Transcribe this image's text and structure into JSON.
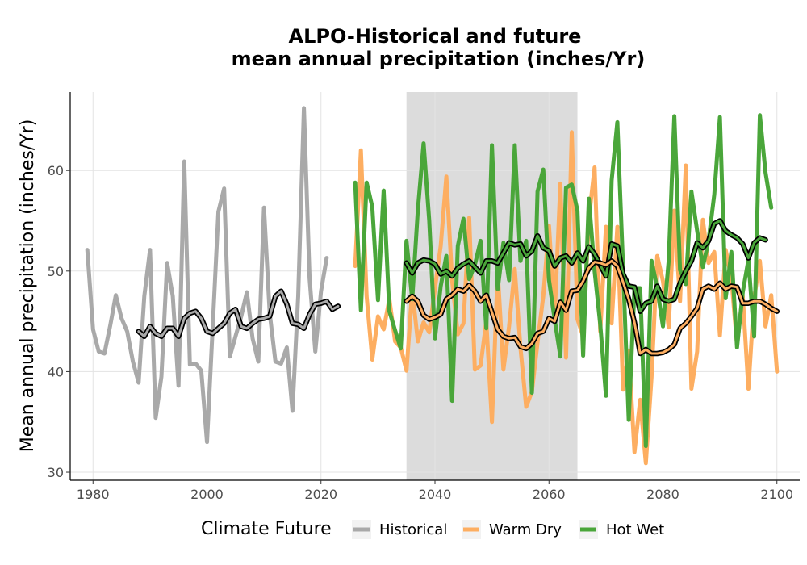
{
  "chart_data": {
    "type": "line",
    "title_line1": "ALPO-Historical and future",
    "title_line2": "mean annual precipitation (inches/Yr)",
    "xlabel": "",
    "ylabel": "Mean annual precipitation (inches/Yr)",
    "xlim": [
      1976,
      2104
    ],
    "ylim": [
      29.2,
      67.8
    ],
    "x_ticks": [
      1980,
      2000,
      2020,
      2040,
      2060,
      2080,
      2100
    ],
    "y_ticks": [
      30,
      40,
      50,
      60
    ],
    "grid": true,
    "shaded_period": [
      2035,
      2065
    ],
    "shaded_color": "#dcdcdc",
    "legend": {
      "title": "Climate Future",
      "position": "bottom",
      "entries": [
        {
          "label": "Historical",
          "color": "#a9a9a9"
        },
        {
          "label": "Warm Dry",
          "color": "#fdae61"
        },
        {
          "label": "Hot Wet",
          "color": "#4aa63a"
        }
      ]
    },
    "series": [
      {
        "name": "Historical",
        "color": "#a9a9a9",
        "x_start": 1979,
        "values": [
          52.1,
          44.2,
          42.0,
          41.8,
          44.5,
          47.6,
          45.3,
          44.0,
          41.0,
          38.9,
          47.5,
          52.1,
          35.4,
          39.5,
          50.8,
          47.5,
          38.6,
          60.9,
          40.7,
          40.8,
          40.1,
          33.0,
          44.5,
          55.9,
          58.2,
          41.5,
          43.5,
          45.5,
          47.9,
          43.3,
          41.0,
          56.3,
          45.8,
          41.0,
          40.8,
          42.4,
          36.1,
          47.5,
          66.2,
          49.3,
          42.0,
          48.0,
          51.3
        ]
      },
      {
        "name": "Warm Dry",
        "color": "#fdae61",
        "x_start": 2026,
        "values": [
          50.5,
          62.0,
          47.5,
          41.2,
          45.5,
          44.2,
          47.2,
          43.0,
          42.4,
          40.1,
          48.1,
          43.0,
          44.9,
          43.9,
          48.3,
          52.5,
          59.4,
          49.1,
          43.7,
          44.8,
          55.3,
          40.2,
          40.6,
          45.0,
          35.0,
          50.0,
          40.2,
          44.5,
          50.2,
          42.4,
          36.5,
          38.0,
          42.9,
          47.5,
          54.5,
          45.5,
          58.7,
          41.4,
          63.8,
          45.2,
          43.5,
          55.2,
          60.3,
          44.0,
          54.4,
          44.8,
          54.4,
          38.2,
          42.1,
          32.0,
          37.2,
          30.9,
          39.5,
          51.5,
          49.0,
          44.4,
          56.0,
          47.0,
          60.5,
          38.3,
          42.0,
          55.1,
          50.8,
          51.9,
          43.6,
          52.1,
          49.3,
          42.7,
          47.5,
          38.3,
          47.3,
          51.0,
          44.5,
          47.6,
          40.0
        ]
      },
      {
        "name": "Hot Wet",
        "color": "#4aa63a",
        "x_start": 2026,
        "values": [
          58.8,
          46.1,
          58.8,
          56.4,
          47.1,
          58.0,
          46.0,
          44.1,
          42.3,
          53.0,
          47.2,
          56.1,
          62.7,
          55.0,
          43.3,
          48.5,
          51.5,
          37.1,
          52.5,
          55.2,
          49.2,
          50.6,
          53.0,
          44.3,
          62.5,
          48.2,
          52.8,
          49.1,
          62.5,
          51.0,
          53.0,
          37.9,
          57.9,
          60.1,
          49.1,
          45.2,
          41.5,
          58.3,
          58.6,
          56.0,
          41.6,
          57.2,
          50.0,
          44.7,
          37.6,
          59.0,
          64.8,
          50.3,
          35.2,
          48.3,
          48.3,
          32.6,
          51.0,
          48.3,
          44.5,
          51.0,
          65.4,
          50.1,
          48.7,
          57.9,
          54.0,
          50.4,
          53.0,
          57.6,
          65.3,
          47.3,
          51.9,
          42.4,
          47.9,
          51.1,
          43.5,
          65.5,
          59.8,
          56.3
        ]
      },
      {
        "name": "",
        "color": "#000000",
        "x_start": 1988,
        "values": [
          44.0,
          43.5,
          44.5,
          43.8,
          43.5,
          44.3,
          44.3,
          43.5,
          45.3,
          45.8,
          46.0,
          45.3,
          44.0,
          43.8,
          44.3,
          44.8,
          45.8,
          46.2,
          44.5,
          44.3,
          44.8,
          45.2,
          45.3,
          45.5,
          47.5,
          48.0,
          46.7,
          44.8,
          44.7,
          44.3,
          45.7,
          46.7,
          46.8,
          47.0,
          46.2,
          46.5
        ]
      },
      {
        "name": "",
        "color": "#000000",
        "x_start": 2035,
        "values": [
          50.8,
          49.8,
          50.8,
          51.1,
          51.0,
          50.7,
          49.7,
          50.0,
          49.5,
          50.3,
          50.7,
          51.0,
          50.4,
          49.8,
          51.0,
          51.0,
          50.8,
          51.8,
          52.8,
          52.6,
          52.7,
          51.5,
          52.0,
          53.5,
          52.3,
          52.0,
          50.5,
          51.3,
          51.5,
          50.8,
          51.8,
          51.0,
          52.4,
          51.7,
          50.6,
          49.5,
          52.7,
          52.5,
          49.7,
          48.5,
          48.4,
          46.0,
          46.8,
          47.0,
          48.5,
          47.2,
          47.0,
          47.2,
          48.8,
          50.0,
          51.0,
          52.8,
          52.3,
          53.0,
          54.7,
          55.0,
          54.0,
          53.6,
          53.3,
          52.7,
          51.3,
          52.8,
          53.3,
          53.1
        ]
      },
      {
        "name": "",
        "color": "#000000",
        "x_start": 2035,
        "values": [
          47.0,
          47.5,
          47.0,
          45.6,
          45.2,
          45.4,
          45.7,
          47.2,
          47.6,
          48.2,
          48.0,
          48.6,
          48.0,
          47.0,
          47.6,
          45.9,
          44.2,
          43.5,
          43.3,
          43.4,
          42.5,
          42.3,
          42.8,
          43.8,
          44.0,
          45.3,
          45.0,
          46.9,
          46.1,
          48.0,
          48.1,
          49.0,
          50.3,
          50.9,
          50.8,
          50.6,
          51.0,
          50.5,
          48.9,
          47.2,
          44.9,
          41.8,
          42.2,
          41.8,
          41.8,
          41.9,
          42.2,
          42.7,
          44.3,
          44.8,
          45.5,
          46.3,
          48.2,
          48.5,
          48.2,
          48.8,
          48.2,
          48.5,
          48.4,
          46.8,
          46.8,
          47.0,
          47.0,
          46.7,
          46.3,
          46.0
        ]
      }
    ]
  }
}
